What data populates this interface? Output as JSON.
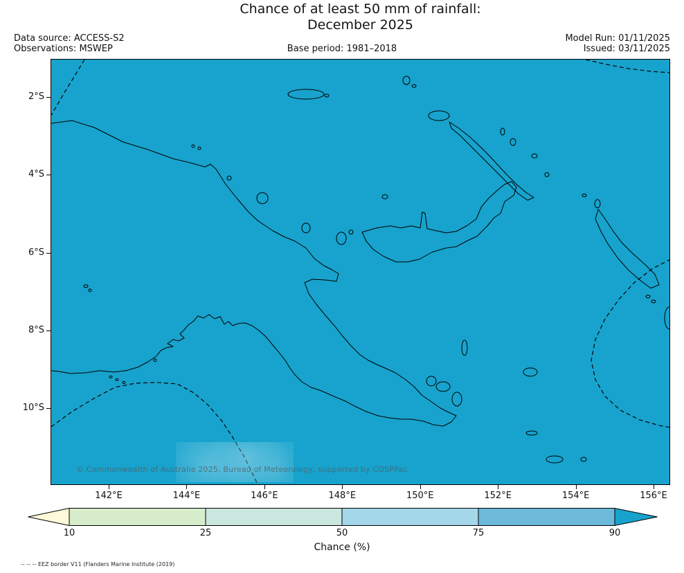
{
  "title": {
    "line1": "Chance of at least 50 mm of rainfall:",
    "line2": "December 2025"
  },
  "header": {
    "data_source": "Data source: ACCESS-S2",
    "observations": "Observations: MSWEP",
    "base_period": "Base period: 1981–2018",
    "model_run": "Model Run: 01/11/2025",
    "issued": "Issued: 03/11/2025"
  },
  "map": {
    "ocean_fill": "#17a3cd",
    "coastline_color": "#000000",
    "y_tick_labels": [
      "2°S",
      "4°S",
      "6°S",
      "8°S",
      "10°S"
    ],
    "x_tick_labels": [
      "142°E",
      "144°E",
      "146°E",
      "148°E",
      "150°E",
      "152°E",
      "154°E",
      "156°E"
    ],
    "watermark": "© Commonwealth of Australia 2025, Bureau of Meteorology, supported by COSPPac"
  },
  "colorbar": {
    "label": "Chance (%)",
    "tick_labels": [
      "10",
      "25",
      "50",
      "75",
      "90"
    ],
    "segment_colors": [
      "#fdf9d9",
      "#d6ecca",
      "#c9e6df",
      "#a3d7e9",
      "#6cb9d9",
      "#17a3cd"
    ]
  },
  "footnote": "-- -- -- EEZ border V11 (Flanders Marine Institute (2019)"
}
